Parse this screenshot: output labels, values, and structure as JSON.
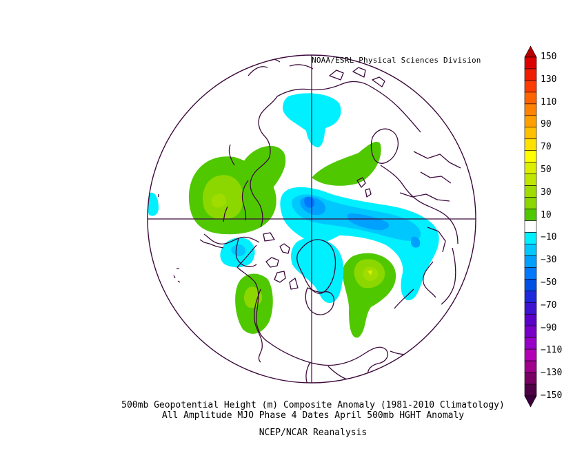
{
  "header": {
    "credit": "NOAA/ESRL Physical Sciences Division"
  },
  "footer": {
    "line1": "500mb Geopotential Height (m) Composite Anomaly (1981-2010 Climatology)",
    "line2": "All Amplitude MJO Phase 4 Dates April 500mb HGHT Anomaly",
    "line3": "NCEP/NCAR Reanalysis"
  },
  "map": {
    "projection": "north-polar-stereographic",
    "variable": "500mb geopotential height anomaly",
    "units": "m"
  },
  "colorbar": {
    "labels": [
      "150",
      "130",
      "110",
      "90",
      "70",
      "50",
      "30",
      "10",
      "−10",
      "−30",
      "−50",
      "−70",
      "−90",
      "−110",
      "−130",
      "−150"
    ],
    "segments": [
      {
        "range": ">150",
        "color": "#b40000"
      },
      {
        "range": "140 to 150",
        "color": "#dc0000"
      },
      {
        "range": "130 to 140",
        "color": "#f01e00"
      },
      {
        "range": "120 to 130",
        "color": "#ff3c00"
      },
      {
        "range": "110 to 120",
        "color": "#ff6400"
      },
      {
        "range": "100 to 110",
        "color": "#ff8200"
      },
      {
        "range": "90 to 100",
        "color": "#ffa000"
      },
      {
        "range": "80 to 90",
        "color": "#ffc000"
      },
      {
        "range": "70 to 80",
        "color": "#ffe100"
      },
      {
        "range": "60 to 70",
        "color": "#ffff00"
      },
      {
        "range": "50 to 60",
        "color": "#dcef00"
      },
      {
        "range": "40 to 50",
        "color": "#c0e600"
      },
      {
        "range": "30 to 40",
        "color": "#a0dc00"
      },
      {
        "range": "20 to 30",
        "color": "#8cd700"
      },
      {
        "range": "10 to 20",
        "color": "#50c800"
      },
      {
        "range": "-10 to 10",
        "color": "#ffffff"
      },
      {
        "range": "-20 to -10",
        "color": "#00f0ff"
      },
      {
        "range": "-30 to -20",
        "color": "#00c8ff"
      },
      {
        "range": "-40 to -30",
        "color": "#00a0ff"
      },
      {
        "range": "-50 to -40",
        "color": "#0078ff"
      },
      {
        "range": "-60 to -50",
        "color": "#0050e6"
      },
      {
        "range": "-70 to -60",
        "color": "#1e28dc"
      },
      {
        "range": "-80 to -70",
        "color": "#3c14d2"
      },
      {
        "range": "-90 to -80",
        "color": "#5a00c8"
      },
      {
        "range": "-100 to -90",
        "color": "#7800c8"
      },
      {
        "range": "-110 to -100",
        "color": "#9600c8"
      },
      {
        "range": "-120 to -110",
        "color": "#b400b4"
      },
      {
        "range": "-130 to -120",
        "color": "#a0008c"
      },
      {
        "range": "-140 to -130",
        "color": "#780064"
      },
      {
        "range": "-150 to -140",
        "color": "#500046"
      },
      {
        "range": "<-150",
        "color": "#3c003c"
      }
    ]
  },
  "colors": {
    "coastline": "#3c0a3c",
    "pos_light": "#8cd700",
    "pos_mid": "#a0dc00",
    "pos_strong": "#c0e600",
    "pos_peak": "#dcef00",
    "neg_light": "#00f0ff",
    "neg_mid": "#00c8ff",
    "neg_strong": "#00a0ff",
    "neg_peak": "#0078ff"
  }
}
